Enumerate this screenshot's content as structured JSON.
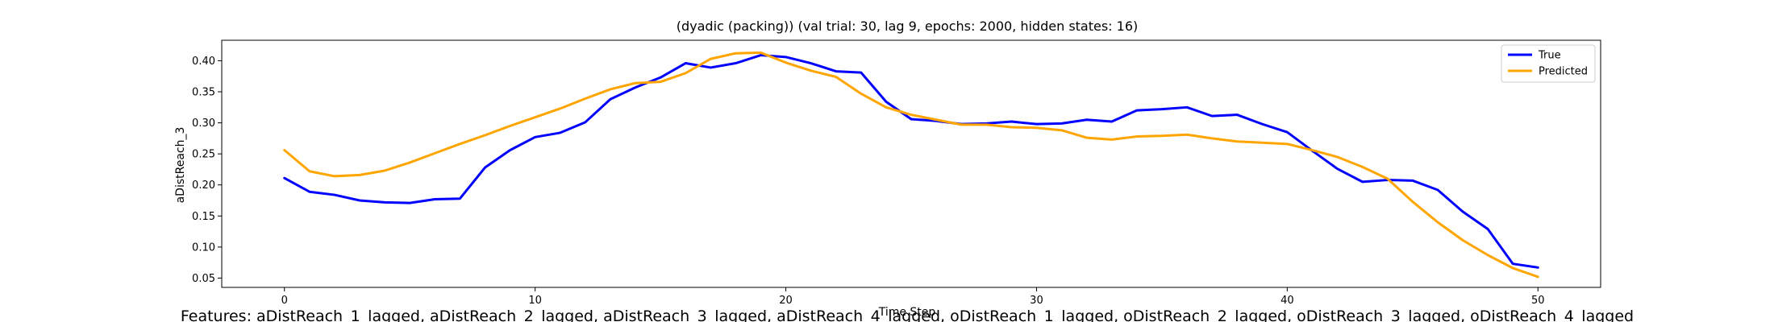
{
  "chart_data": {
    "type": "line",
    "title": "(dyadic (packing)) (val trial: 30, lag 9, epochs: 2000, hidden states: 16)",
    "xlabel": "Time Step",
    "ylabel": "aDistReach_3",
    "footer": "Features: aDistReach_1_lagged, aDistReach_2_lagged, aDistReach_3_lagged, aDistReach_4_lagged, oDistReach_1_lagged, oDistReach_2_lagged, oDistReach_3_lagged, oDistReach_4_lagged",
    "xlim": [
      -2.5,
      52.5
    ],
    "ylim": [
      0.035,
      0.433
    ],
    "xticks": [
      0,
      10,
      20,
      30,
      40,
      50
    ],
    "yticks": [
      0.05,
      0.1,
      0.15,
      0.2,
      0.25,
      0.3,
      0.35,
      0.4
    ],
    "ytick_labels": [
      "0.05",
      "0.10",
      "0.15",
      "0.20",
      "0.25",
      "0.30",
      "0.35",
      "0.40"
    ],
    "legend_position": "top-right",
    "grid": false,
    "series": [
      {
        "name": "True",
        "color": "#0000ff",
        "values": [
          0.211,
          0.189,
          0.184,
          0.175,
          0.172,
          0.171,
          0.177,
          0.178,
          0.228,
          0.256,
          0.277,
          0.284,
          0.301,
          0.338,
          0.357,
          0.373,
          0.396,
          0.389,
          0.396,
          0.409,
          0.406,
          0.396,
          0.383,
          0.381,
          0.334,
          0.306,
          0.303,
          0.298,
          0.299,
          0.302,
          0.298,
          0.299,
          0.305,
          0.302,
          0.32,
          0.322,
          0.325,
          0.311,
          0.313,
          0.298,
          0.285,
          0.255,
          0.226,
          0.205,
          0.208,
          0.207,
          0.192,
          0.157,
          0.129,
          0.073,
          0.067
        ]
      },
      {
        "name": "Predicted",
        "color": "#ffa500",
        "values": [
          0.256,
          0.222,
          0.214,
          0.216,
          0.223,
          0.236,
          0.251,
          0.266,
          0.28,
          0.295,
          0.309,
          0.323,
          0.339,
          0.354,
          0.364,
          0.366,
          0.38,
          0.403,
          0.412,
          0.413,
          0.397,
          0.384,
          0.374,
          0.347,
          0.325,
          0.313,
          0.305,
          0.297,
          0.297,
          0.293,
          0.292,
          0.288,
          0.276,
          0.273,
          0.278,
          0.279,
          0.281,
          0.275,
          0.27,
          0.268,
          0.266,
          0.256,
          0.245,
          0.229,
          0.21,
          0.173,
          0.14,
          0.111,
          0.087,
          0.066,
          0.052
        ]
      }
    ]
  }
}
